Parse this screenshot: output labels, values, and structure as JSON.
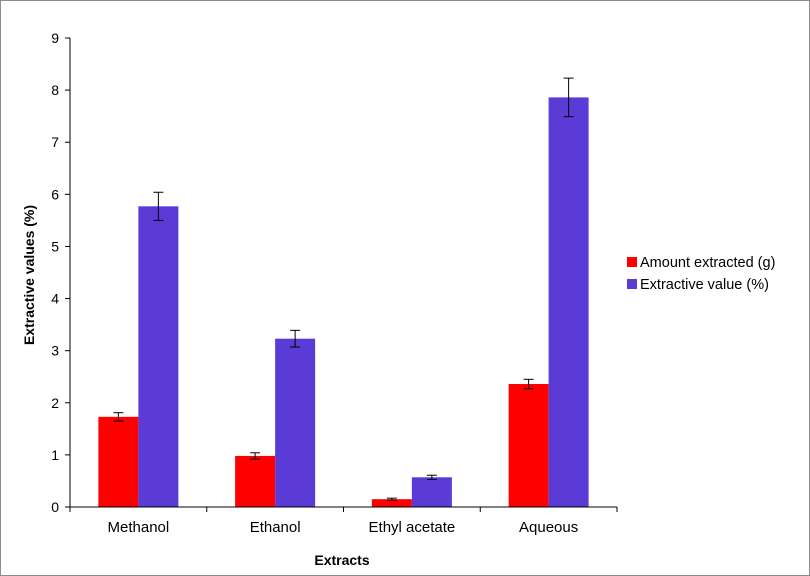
{
  "chart_data": {
    "type": "bar",
    "title": "",
    "xlabel": "Extracts",
    "ylabel": "Extractive values (%)",
    "ylim": [
      0,
      9
    ],
    "yticks": [
      0,
      1,
      2,
      3,
      4,
      5,
      6,
      7,
      8,
      9
    ],
    "categories": [
      "Methanol",
      "Ethanol",
      "Ethyl acetate",
      "Aqueous"
    ],
    "series": [
      {
        "name": "Amount extracted (g)",
        "color": "#ff0000",
        "values": [
          1.73,
          0.98,
          0.15,
          2.36
        ],
        "errors": [
          0.08,
          0.06,
          0.02,
          0.09
        ]
      },
      {
        "name": "Extractive value (%)",
        "color": "#5a3bd6",
        "values": [
          5.77,
          3.23,
          0.57,
          7.86
        ],
        "errors": [
          0.27,
          0.16,
          0.04,
          0.37
        ]
      }
    ],
    "legend_position": "right",
    "grid": false
  }
}
